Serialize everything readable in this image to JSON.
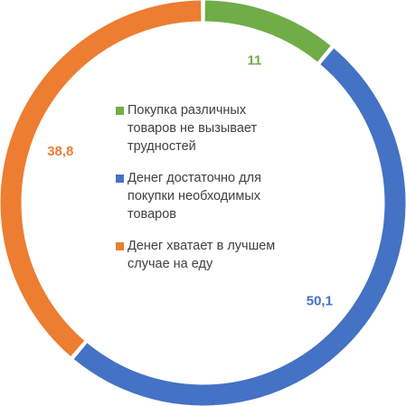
{
  "chart_data": {
    "type": "pie",
    "variant": "donut",
    "categories": [
      "Покупка различных товаров не вызывает трудностей",
      "Денег достаточно для покупки необходимых товаров",
      "Денег хватает в лучшем случае на еду"
    ],
    "values": [
      11,
      50.1,
      38.8
    ],
    "value_labels": [
      "11",
      "50,1",
      "38,8"
    ],
    "colors": [
      "#70ad47",
      "#4472c4",
      "#ed7d31"
    ],
    "legend_position": "center",
    "title": ""
  }
}
